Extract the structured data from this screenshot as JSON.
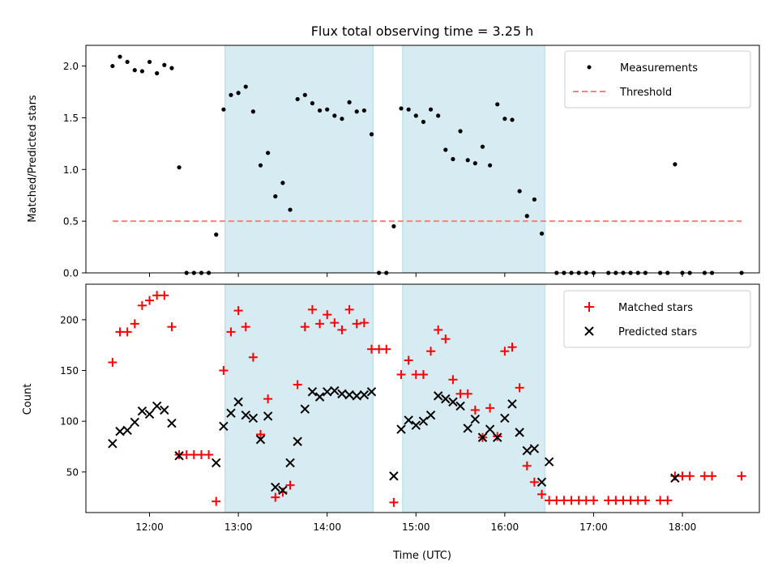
{
  "chart_data": [
    {
      "type": "scatter",
      "title": "Flux total observing time = 3.25 h",
      "xlabel": "",
      "ylabel": "Matched/Predicted stars",
      "xlim": [
        "11:17",
        "18:52"
      ],
      "ylim": [
        0,
        2.2
      ],
      "yticks": [
        "0.0",
        "0.5",
        "1.0",
        "1.5",
        "2.0"
      ],
      "legend_position": "top-right",
      "shaded_intervals": [
        [
          "12:51",
          "14:31"
        ],
        [
          "14:51",
          "16:27"
        ]
      ],
      "series": [
        {
          "name": "Measurements",
          "marker": "dot",
          "color": "#000000",
          "points": [
            [
              "11:35",
              2.0
            ],
            [
              "11:40",
              2.09
            ],
            [
              "11:45",
              2.04
            ],
            [
              "11:50",
              1.96
            ],
            [
              "11:55",
              1.95
            ],
            [
              "12:00",
              2.04
            ],
            [
              "12:05",
              1.93
            ],
            [
              "12:10",
              2.01
            ],
            [
              "12:15",
              1.98
            ],
            [
              "12:20",
              1.02
            ],
            [
              "12:25",
              0.0
            ],
            [
              "12:30",
              0.0
            ],
            [
              "12:35",
              0.0
            ],
            [
              "12:40",
              0.0
            ],
            [
              "12:45",
              0.37
            ],
            [
              "12:50",
              1.58
            ],
            [
              "12:55",
              1.72
            ],
            [
              "13:00",
              1.74
            ],
            [
              "13:05",
              1.8
            ],
            [
              "13:10",
              1.56
            ],
            [
              "13:15",
              1.04
            ],
            [
              "13:20",
              1.16
            ],
            [
              "13:25",
              0.74
            ],
            [
              "13:30",
              0.87
            ],
            [
              "13:35",
              0.61
            ],
            [
              "13:40",
              1.68
            ],
            [
              "13:45",
              1.72
            ],
            [
              "13:50",
              1.64
            ],
            [
              "13:55",
              1.57
            ],
            [
              "14:00",
              1.58
            ],
            [
              "14:05",
              1.52
            ],
            [
              "14:10",
              1.49
            ],
            [
              "14:15",
              1.65
            ],
            [
              "14:20",
              1.56
            ],
            [
              "14:25",
              1.57
            ],
            [
              "14:30",
              1.34
            ],
            [
              "14:35",
              0.0
            ],
            [
              "14:40",
              0.0
            ],
            [
              "14:45",
              0.45
            ],
            [
              "14:50",
              1.59
            ],
            [
              "14:55",
              1.58
            ],
            [
              "15:00",
              1.52
            ],
            [
              "15:05",
              1.46
            ],
            [
              "15:10",
              1.58
            ],
            [
              "15:15",
              1.52
            ],
            [
              "15:20",
              1.19
            ],
            [
              "15:25",
              1.1
            ],
            [
              "15:30",
              1.37
            ],
            [
              "15:35",
              1.09
            ],
            [
              "15:40",
              1.06
            ],
            [
              "15:45",
              1.22
            ],
            [
              "15:50",
              1.04
            ],
            [
              "15:55",
              1.63
            ],
            [
              "16:00",
              1.49
            ],
            [
              "16:05",
              1.48
            ],
            [
              "16:10",
              0.79
            ],
            [
              "16:15",
              0.55
            ],
            [
              "16:20",
              0.71
            ],
            [
              "16:25",
              0.38
            ],
            [
              "16:35",
              0.0
            ],
            [
              "16:40",
              0.0
            ],
            [
              "16:45",
              0.0
            ],
            [
              "16:50",
              0.0
            ],
            [
              "16:55",
              0.0
            ],
            [
              "17:00",
              0.0
            ],
            [
              "17:10",
              0.0
            ],
            [
              "17:15",
              0.0
            ],
            [
              "17:20",
              0.0
            ],
            [
              "17:25",
              0.0
            ],
            [
              "17:30",
              0.0
            ],
            [
              "17:35",
              0.0
            ],
            [
              "17:45",
              0.0
            ],
            [
              "17:50",
              0.0
            ],
            [
              "17:55",
              1.05
            ],
            [
              "18:00",
              0.0
            ],
            [
              "18:05",
              0.0
            ],
            [
              "18:15",
              0.0
            ],
            [
              "18:20",
              0.0
            ],
            [
              "18:40",
              0.0
            ]
          ]
        },
        {
          "name": "Threshold",
          "marker": "dashed-line",
          "color": "#ff7f7f",
          "points": [
            [
              "11:35",
              0.5
            ],
            [
              "18:40",
              0.5
            ]
          ]
        }
      ]
    },
    {
      "type": "scatter",
      "title": "",
      "xlabel": "Time (UTC)",
      "ylabel": "Count",
      "xlim": [
        "11:17",
        "18:52"
      ],
      "ylim": [
        10,
        235
      ],
      "yticks": [
        "50",
        "100",
        "150",
        "200"
      ],
      "xticks": [
        "12:00",
        "13:00",
        "14:00",
        "15:00",
        "16:00",
        "17:00",
        "18:00"
      ],
      "legend_position": "top-right",
      "shaded_intervals": [
        [
          "12:51",
          "14:31"
        ],
        [
          "14:51",
          "16:27"
        ]
      ],
      "series": [
        {
          "name": "Matched stars",
          "marker": "plus",
          "color": "#ff0000",
          "points": [
            [
              "11:35",
              158
            ],
            [
              "11:40",
              188
            ],
            [
              "11:45",
              188
            ],
            [
              "11:50",
              196
            ],
            [
              "11:55",
              214
            ],
            [
              "12:00",
              219
            ],
            [
              "12:05",
              224
            ],
            [
              "12:10",
              224
            ],
            [
              "12:15",
              193
            ],
            [
              "12:20",
              67
            ],
            [
              "12:25",
              67
            ],
            [
              "12:30",
              67
            ],
            [
              "12:35",
              67
            ],
            [
              "12:40",
              67
            ],
            [
              "12:45",
              21
            ],
            [
              "12:50",
              150
            ],
            [
              "12:55",
              188
            ],
            [
              "13:00",
              209
            ],
            [
              "13:05",
              193
            ],
            [
              "13:10",
              163
            ],
            [
              "13:15",
              87
            ],
            [
              "13:20",
              122
            ],
            [
              "13:25",
              25
            ],
            [
              "13:30",
              30
            ],
            [
              "13:35",
              37
            ],
            [
              "13:40",
              136
            ],
            [
              "13:45",
              193
            ],
            [
              "13:50",
              210
            ],
            [
              "13:55",
              196
            ],
            [
              "14:00",
              205
            ],
            [
              "14:05",
              197
            ],
            [
              "14:10",
              190
            ],
            [
              "14:15",
              210
            ],
            [
              "14:20",
              196
            ],
            [
              "14:25",
              197
            ],
            [
              "14:30",
              171
            ],
            [
              "14:35",
              171
            ],
            [
              "14:40",
              171
            ],
            [
              "14:45",
              20
            ],
            [
              "14:50",
              146
            ],
            [
              "14:55",
              160
            ],
            [
              "15:00",
              146
            ],
            [
              "15:05",
              146
            ],
            [
              "15:10",
              169
            ],
            [
              "15:15",
              190
            ],
            [
              "15:20",
              181
            ],
            [
              "15:25",
              141
            ],
            [
              "15:30",
              127
            ],
            [
              "15:35",
              127
            ],
            [
              "15:40",
              111
            ],
            [
              "15:45",
              84
            ],
            [
              "15:50",
              113
            ],
            [
              "15:55",
              85
            ],
            [
              "16:00",
              169
            ],
            [
              "16:05",
              173
            ],
            [
              "16:10",
              133
            ],
            [
              "16:15",
              56
            ],
            [
              "16:20",
              40
            ],
            [
              "16:25",
              28
            ],
            [
              "16:30",
              22
            ],
            [
              "16:35",
              22
            ],
            [
              "16:40",
              22
            ],
            [
              "16:45",
              22
            ],
            [
              "16:50",
              22
            ],
            [
              "16:55",
              22
            ],
            [
              "17:00",
              22
            ],
            [
              "17:10",
              22
            ],
            [
              "17:15",
              22
            ],
            [
              "17:20",
              22
            ],
            [
              "17:25",
              22
            ],
            [
              "17:30",
              22
            ],
            [
              "17:35",
              22
            ],
            [
              "17:45",
              22
            ],
            [
              "17:50",
              22
            ],
            [
              "17:55",
              46
            ],
            [
              "18:00",
              46
            ],
            [
              "18:05",
              46
            ],
            [
              "18:15",
              46
            ],
            [
              "18:20",
              46
            ],
            [
              "18:40",
              46
            ]
          ]
        },
        {
          "name": "Predicted stars",
          "marker": "x",
          "color": "#000000",
          "points": [
            [
              "11:35",
              78
            ],
            [
              "11:40",
              90
            ],
            [
              "11:45",
              91
            ],
            [
              "11:50",
              99
            ],
            [
              "11:55",
              110
            ],
            [
              "12:00",
              107
            ],
            [
              "12:05",
              115
            ],
            [
              "12:10",
              111
            ],
            [
              "12:15",
              98
            ],
            [
              "12:20",
              66
            ],
            [
              "12:45",
              59
            ],
            [
              "12:50",
              95
            ],
            [
              "12:55",
              108
            ],
            [
              "13:00",
              119
            ],
            [
              "13:05",
              106
            ],
            [
              "13:10",
              103
            ],
            [
              "13:15",
              82
            ],
            [
              "13:20",
              105
            ],
            [
              "13:25",
              35
            ],
            [
              "13:30",
              32
            ],
            [
              "13:35",
              59
            ],
            [
              "13:40",
              80
            ],
            [
              "13:45",
              112
            ],
            [
              "13:50",
              129
            ],
            [
              "13:55",
              124
            ],
            [
              "14:00",
              129
            ],
            [
              "14:05",
              130
            ],
            [
              "14:10",
              127
            ],
            [
              "14:15",
              126
            ],
            [
              "14:20",
              125
            ],
            [
              "14:25",
              126
            ],
            [
              "14:30",
              129
            ],
            [
              "14:45",
              46
            ],
            [
              "14:50",
              92
            ],
            [
              "14:55",
              101
            ],
            [
              "15:00",
              96
            ],
            [
              "15:05",
              100
            ],
            [
              "15:10",
              106
            ],
            [
              "15:15",
              125
            ],
            [
              "15:20",
              122
            ],
            [
              "15:25",
              119
            ],
            [
              "15:30",
              115
            ],
            [
              "15:35",
              93
            ],
            [
              "15:40",
              102
            ],
            [
              "15:45",
              84
            ],
            [
              "15:50",
              92
            ],
            [
              "15:55",
              84
            ],
            [
              "16:00",
              103
            ],
            [
              "16:05",
              117
            ],
            [
              "16:10",
              89
            ],
            [
              "16:15",
              71
            ],
            [
              "16:20",
              73
            ],
            [
              "16:25",
              40
            ],
            [
              "16:30",
              60
            ],
            [
              "17:55",
              44
            ]
          ]
        }
      ]
    }
  ]
}
